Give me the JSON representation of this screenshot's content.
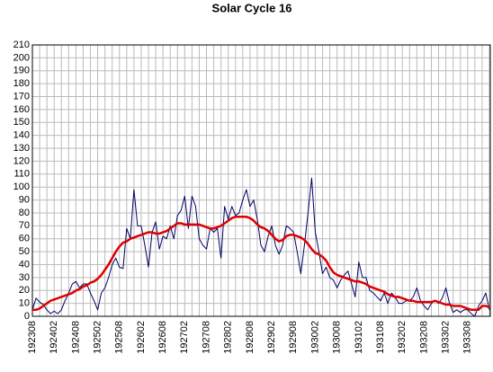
{
  "chart_data": {
    "type": "line",
    "title": "Solar Cycle 16",
    "categories": [
      "192308",
      null,
      null,
      null,
      null,
      null,
      "192402",
      null,
      null,
      null,
      null,
      null,
      "192408",
      null,
      null,
      null,
      null,
      null,
      "192502",
      null,
      null,
      null,
      null,
      null,
      "192508",
      null,
      null,
      null,
      null,
      null,
      "192602",
      null,
      null,
      null,
      null,
      null,
      "192608",
      null,
      null,
      null,
      null,
      null,
      "192702",
      null,
      null,
      null,
      null,
      null,
      "192708",
      null,
      null,
      null,
      null,
      null,
      "192802",
      null,
      null,
      null,
      null,
      null,
      "192808",
      null,
      null,
      null,
      null,
      null,
      "192902",
      null,
      null,
      null,
      null,
      null,
      "192908",
      null,
      null,
      null,
      null,
      null,
      "193002",
      null,
      null,
      null,
      null,
      null,
      "193008",
      null,
      null,
      null,
      null,
      null,
      "193102",
      null,
      null,
      null,
      null,
      null,
      "193108",
      null,
      null,
      null,
      null,
      null,
      "193202",
      null,
      null,
      null,
      null,
      null,
      "193208",
      null,
      null,
      null,
      null,
      null,
      "193302",
      null,
      null,
      null,
      null,
      null,
      "193308",
      null,
      null,
      null,
      null,
      null,
      null
    ],
    "series": [
      {
        "color": "#000066",
        "width": 1,
        "values": [
          5,
          14,
          11,
          9,
          5,
          2,
          4,
          2,
          5,
          12,
          18,
          25,
          27,
          22,
          25,
          25,
          18,
          12,
          5,
          18,
          22,
          30,
          40,
          45,
          38,
          37,
          68,
          60,
          98,
          70,
          70,
          55,
          38,
          65,
          73,
          52,
          62,
          60,
          70,
          60,
          78,
          82,
          93,
          68,
          93,
          85,
          60,
          55,
          52,
          68,
          65,
          68,
          45,
          85,
          75,
          85,
          78,
          80,
          90,
          98,
          85,
          90,
          75,
          55,
          50,
          62,
          70,
          55,
          48,
          55,
          70,
          68,
          65,
          50,
          33,
          55,
          80,
          107,
          65,
          50,
          33,
          38,
          30,
          28,
          22,
          28,
          32,
          35,
          25,
          15,
          42,
          30,
          30,
          20,
          18,
          15,
          12,
          18,
          10,
          18,
          15,
          10,
          10,
          12,
          12,
          15,
          22,
          12,
          8,
          5,
          10,
          12,
          10,
          14,
          22,
          10,
          3,
          5,
          3,
          5,
          5,
          2,
          0,
          8,
          12,
          18,
          5
        ]
      },
      {
        "color": "#dd0000",
        "width": 2.5,
        "values": [
          5,
          5,
          6,
          8,
          10,
          12,
          13,
          14,
          15,
          16,
          17,
          18,
          20,
          21,
          23,
          24,
          26,
          27,
          29,
          32,
          36,
          40,
          45,
          50,
          54,
          57,
          58,
          60,
          61,
          62,
          63,
          64,
          65,
          65,
          64,
          64,
          65,
          66,
          68,
          70,
          72,
          72,
          71,
          71,
          71,
          71,
          71,
          70,
          69,
          68,
          68,
          69,
          70,
          72,
          74,
          76,
          77,
          77,
          77,
          77,
          76,
          74,
          71,
          69,
          68,
          66,
          63,
          60,
          58,
          59,
          62,
          63,
          63,
          62,
          61,
          59,
          56,
          52,
          49,
          48,
          46,
          43,
          38,
          34,
          32,
          31,
          30,
          29,
          28,
          27,
          27,
          26,
          25,
          23,
          22,
          21,
          20,
          19,
          17,
          16,
          15,
          15,
          14,
          13,
          12,
          12,
          11,
          11,
          11,
          11,
          11,
          12,
          11,
          10,
          9,
          9,
          8,
          8,
          8,
          7,
          6,
          5,
          5,
          5,
          8,
          8,
          7
        ]
      }
    ],
    "ylim": [
      0,
      210
    ],
    "yticks": [
      0,
      10,
      20,
      30,
      40,
      50,
      60,
      70,
      80,
      90,
      100,
      110,
      120,
      130,
      140,
      150,
      160,
      170,
      180,
      190,
      200,
      210
    ],
    "grid": true
  }
}
